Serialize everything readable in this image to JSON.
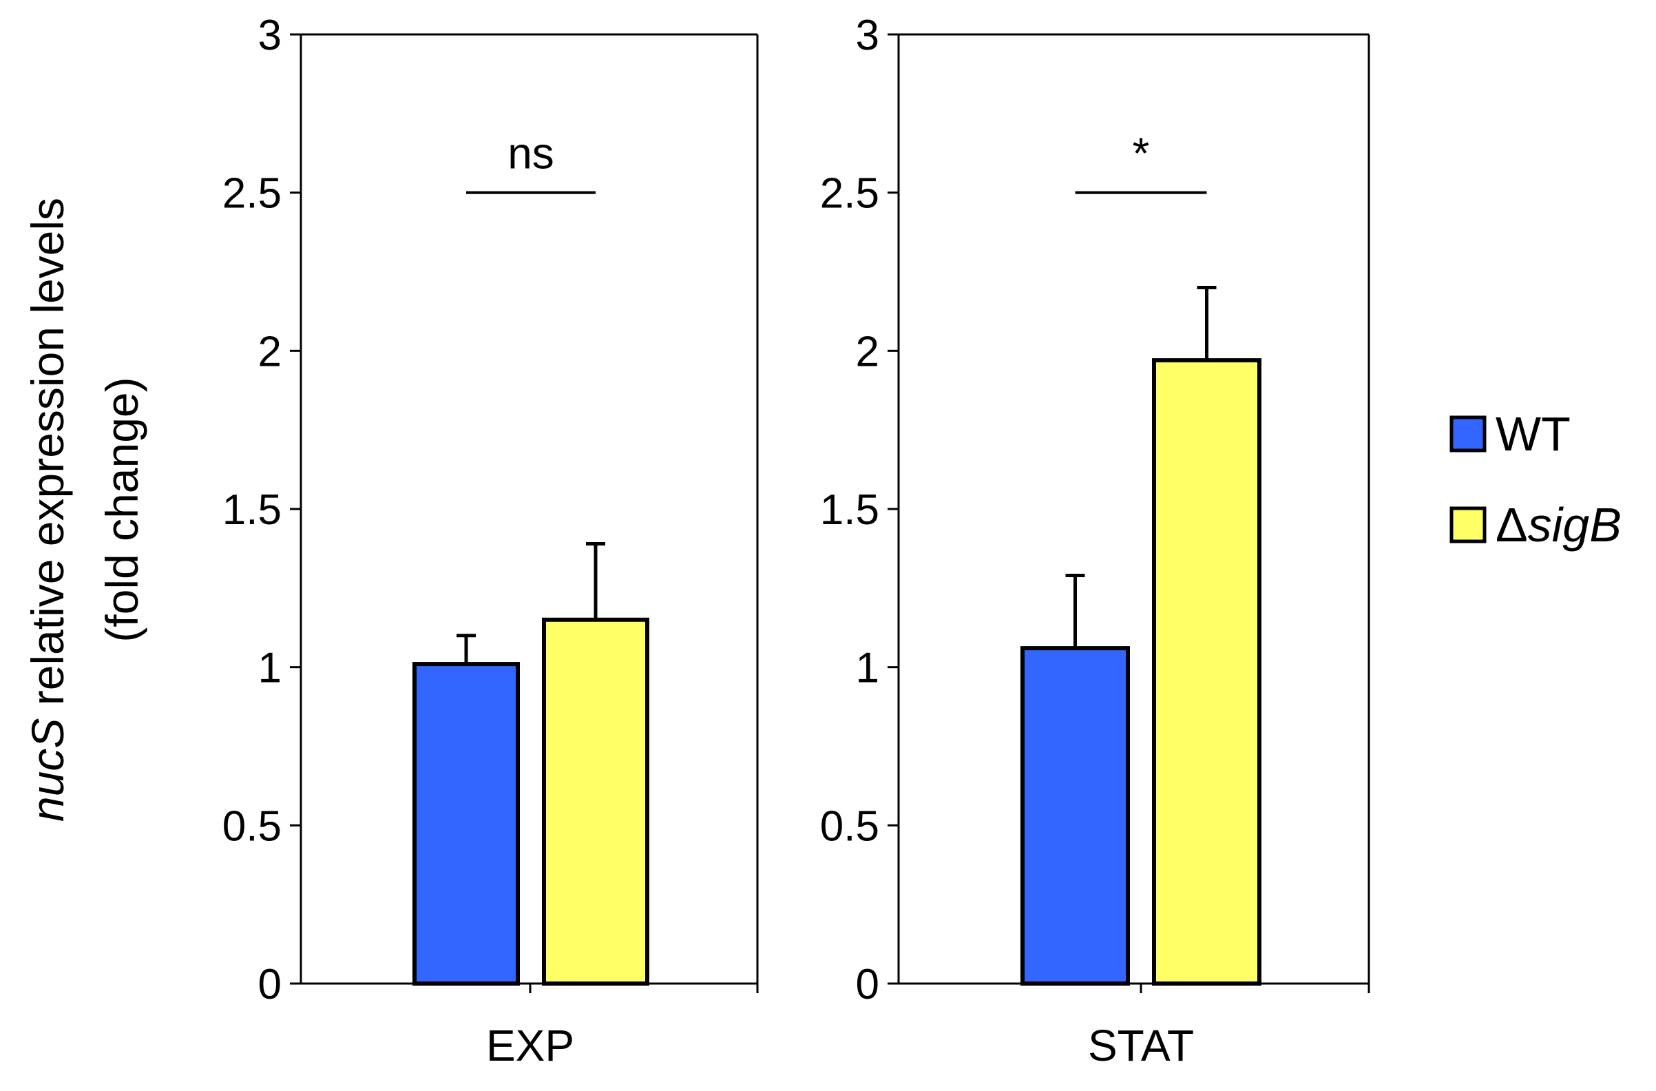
{
  "chart_data": [
    {
      "type": "bar",
      "panel": "EXP",
      "categories": [
        "EXP"
      ],
      "series": [
        {
          "name": "WT",
          "values": [
            1.01
          ],
          "error": [
            0.09
          ]
        },
        {
          "name": "ΔsigB",
          "values": [
            1.15
          ],
          "error": [
            0.24
          ]
        }
      ],
      "ylim": [
        0,
        3
      ],
      "yticks": [
        "0",
        "0.5",
        "1",
        "1.5",
        "2",
        "2.5",
        "3"
      ],
      "ytick_values": [
        0,
        0.5,
        1,
        1.5,
        2,
        2.5,
        3
      ],
      "significance": {
        "label": "ns",
        "y": 2.5
      }
    },
    {
      "type": "bar",
      "panel": "STAT",
      "categories": [
        "STAT"
      ],
      "series": [
        {
          "name": "WT",
          "values": [
            1.06
          ],
          "error": [
            0.23
          ]
        },
        {
          "name": "ΔsigB",
          "values": [
            1.97
          ],
          "error": [
            0.23
          ]
        }
      ],
      "ylim": [
        0,
        3
      ],
      "yticks": [
        "0",
        "0.5",
        "1",
        "1.5",
        "2",
        "2.5",
        "3"
      ],
      "ytick_values": [
        0,
        0.5,
        1,
        1.5,
        2,
        2.5,
        3
      ],
      "significance": {
        "label": "*",
        "y": 2.5
      }
    }
  ],
  "ylabel": {
    "gene": "nucS",
    "line1_rest": " relative expression levels",
    "line2": "(fold change)"
  },
  "legend": {
    "items": [
      {
        "name": "WT",
        "prefix": "",
        "italic": "",
        "label": "WT",
        "color": "#3366FF"
      },
      {
        "name": "ΔsigB",
        "prefix": "Δ",
        "italic": "sigB",
        "label": "",
        "color": "#FFFF66"
      }
    ]
  },
  "colors": {
    "wt": "#3366FF",
    "sigb": "#FFFF66",
    "axis": "#000000"
  }
}
